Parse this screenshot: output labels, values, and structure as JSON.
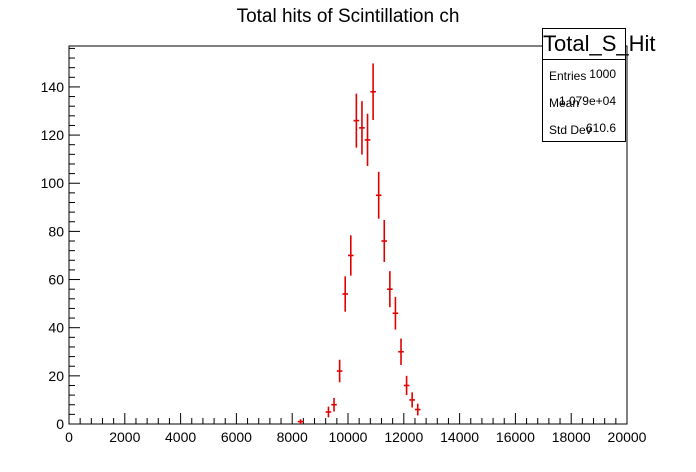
{
  "chart_data": {
    "type": "histogram",
    "title": "Total hits of Scintillation ch",
    "xlabel": "",
    "ylabel": "",
    "xlim": [
      0,
      20000
    ],
    "ylim": [
      0,
      157
    ],
    "x_ticks": [
      0,
      2000,
      4000,
      6000,
      8000,
      10000,
      12000,
      14000,
      16000,
      18000,
      20000
    ],
    "y_ticks": [
      0,
      20,
      40,
      60,
      80,
      100,
      120,
      140
    ],
    "bin_width": 200,
    "series": [
      {
        "color": "#e00000",
        "points": [
          {
            "x": 8300,
            "y": 1
          },
          {
            "x": 9300,
            "y": 5
          },
          {
            "x": 9500,
            "y": 8
          },
          {
            "x": 9700,
            "y": 22
          },
          {
            "x": 9900,
            "y": 54
          },
          {
            "x": 10100,
            "y": 70
          },
          {
            "x": 10300,
            "y": 126
          },
          {
            "x": 10500,
            "y": 123
          },
          {
            "x": 10700,
            "y": 118
          },
          {
            "x": 10900,
            "y": 138
          },
          {
            "x": 11100,
            "y": 95
          },
          {
            "x": 11300,
            "y": 76
          },
          {
            "x": 11500,
            "y": 56
          },
          {
            "x": 11700,
            "y": 46
          },
          {
            "x": 11900,
            "y": 30
          },
          {
            "x": 12100,
            "y": 16
          },
          {
            "x": 12300,
            "y": 10
          },
          {
            "x": 12500,
            "y": 6
          }
        ]
      }
    ],
    "grid": false,
    "legend": "none"
  },
  "stats_box": {
    "title": "Total_S_Hit",
    "rows": [
      {
        "label": "Entries",
        "value": "1000"
      },
      {
        "label": "Mean",
        "value": "1.079e+04"
      },
      {
        "label": "Std Dev",
        "value": "610.6"
      }
    ]
  }
}
